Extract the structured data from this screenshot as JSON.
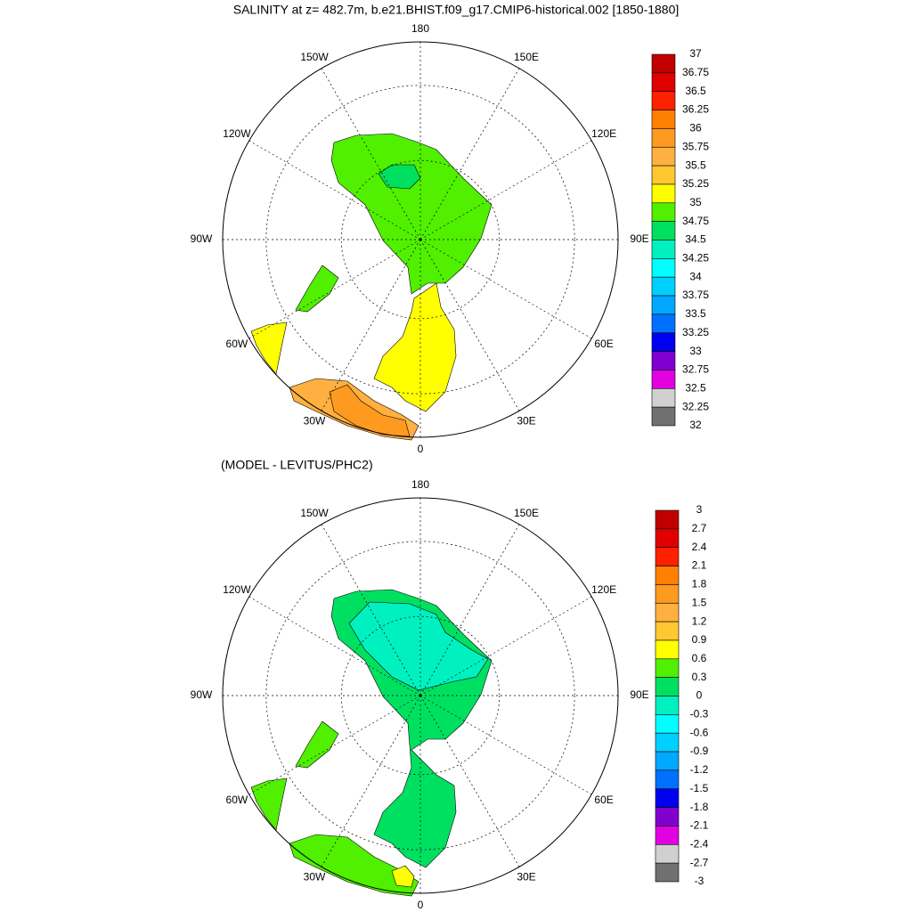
{
  "title": "SALINITY at z= 482.7m, b.e21.BHIST.f09_g17.CMIP6-historical.002 [1850-1880]",
  "panels": [
    {
      "lon_labels": [
        "180",
        "150E",
        "120E",
        "90E",
        "60E",
        "30E",
        "0",
        "30W",
        "60W",
        "90W",
        "120W",
        "150W"
      ],
      "colorbar": {
        "levels": [
          37,
          36.75,
          36.5,
          36.25,
          36,
          35.75,
          35.5,
          35.25,
          35,
          34.75,
          34.5,
          34.25,
          34,
          33.75,
          33.5,
          33.25,
          33,
          32.75,
          32.5,
          32.25,
          32
        ],
        "colors": [
          "#c00000",
          "#e00000",
          "#ff2000",
          "#ff8000",
          "#ff9a20",
          "#ffb040",
          "#ffc830",
          "#ffff00",
          "#50f000",
          "#00e060",
          "#00f0c0",
          "#00ffff",
          "#00d0ff",
          "#00a8ff",
          "#0070ff",
          "#0000f0",
          "#8000d0",
          "#e000e0",
          "#d0d0d0",
          "#707070"
        ]
      }
    },
    {
      "subtitle": "(MODEL - LEVITUS/PHC2)",
      "lon_labels": [
        "180",
        "150E",
        "120E",
        "90E",
        "60E",
        "30E",
        "0",
        "30W",
        "60W",
        "90W",
        "120W",
        "150W"
      ],
      "colorbar": {
        "levels": [
          3,
          2.7,
          2.4,
          2.1,
          1.8,
          1.5,
          1.2,
          0.9,
          0.6,
          0.3,
          0,
          -0.3,
          -0.6,
          -0.9,
          -1.2,
          -1.5,
          -1.8,
          -2.1,
          -2.4,
          -2.7,
          -3
        ],
        "colors": [
          "#c00000",
          "#e00000",
          "#ff2000",
          "#ff8000",
          "#ff9a20",
          "#ffb040",
          "#ffc830",
          "#ffff00",
          "#50f000",
          "#00e060",
          "#00f0c0",
          "#00ffff",
          "#00d0ff",
          "#00a8ff",
          "#0070ff",
          "#0000f0",
          "#8000d0",
          "#e000e0",
          "#d0d0d0",
          "#707070"
        ]
      }
    }
  ]
}
